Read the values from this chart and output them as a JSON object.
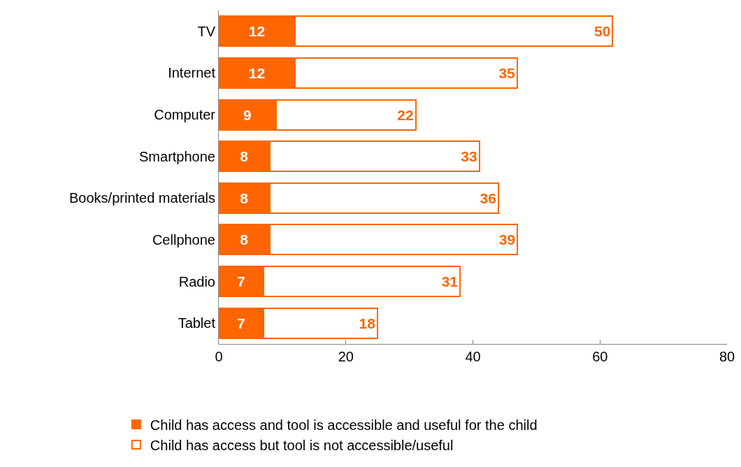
{
  "chart_data": {
    "type": "bar",
    "orientation": "horizontal",
    "stacked": true,
    "categories": [
      "TV",
      "Internet",
      "Computer",
      "Smartphone",
      "Books/printed materials",
      "Cellphone",
      "Radio",
      "Tablet"
    ],
    "series": [
      {
        "name": "Child has access and tool is accessible and useful for the child",
        "color": "#ff6600",
        "values": [
          12,
          12,
          9,
          8,
          8,
          8,
          7,
          7
        ]
      },
      {
        "name": "Child has access but tool is not accessible/useful",
        "color": "#ffffff",
        "values": [
          50,
          35,
          22,
          33,
          36,
          39,
          31,
          18
        ]
      }
    ],
    "xlim": [
      0,
      80
    ],
    "xticks": [
      0,
      20,
      40,
      60,
      80
    ],
    "grid": false,
    "legend": "bottom",
    "data_labels": true
  }
}
